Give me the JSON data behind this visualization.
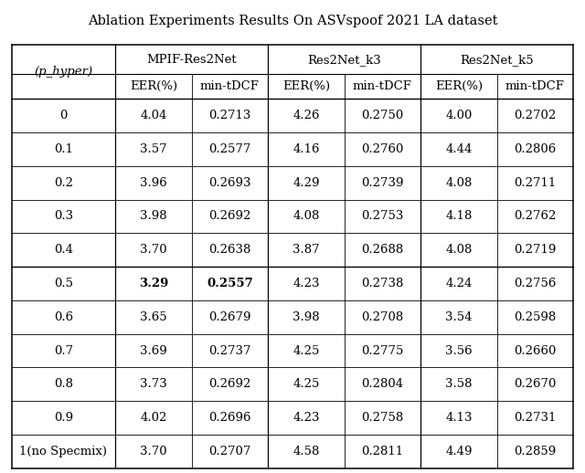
{
  "title": "Ablation Experiments Results On ASVspoof 2021 LA dataset",
  "col_groups": [
    "MPIF-Res2Net",
    "Res2Net_k3",
    "Res2Net_k5"
  ],
  "sub_cols": [
    "EER(%)",
    "min-tDCF"
  ],
  "row_header": "(p_hyper)",
  "rows": [
    {
      "label": "0",
      "vals": [
        "4.04",
        "0.2713",
        "4.26",
        "0.2750",
        "4.00",
        "0.2702"
      ],
      "bold": false
    },
    {
      "label": "0.1",
      "vals": [
        "3.57",
        "0.2577",
        "4.16",
        "0.2760",
        "4.44",
        "0.2806"
      ],
      "bold": false
    },
    {
      "label": "0.2",
      "vals": [
        "3.96",
        "0.2693",
        "4.29",
        "0.2739",
        "4.08",
        "0.2711"
      ],
      "bold": false
    },
    {
      "label": "0.3",
      "vals": [
        "3.98",
        "0.2692",
        "4.08",
        "0.2753",
        "4.18",
        "0.2762"
      ],
      "bold": false
    },
    {
      "label": "0.4",
      "vals": [
        "3.70",
        "0.2638",
        "3.87",
        "0.2688",
        "4.08",
        "0.2719"
      ],
      "bold": false
    },
    {
      "label": "0.5",
      "vals": [
        "3.29",
        "0.2557",
        "4.23",
        "0.2738",
        "4.24",
        "0.2756"
      ],
      "bold": true
    },
    {
      "label": "0.6",
      "vals": [
        "3.65",
        "0.2679",
        "3.98",
        "0.2708",
        "3.54",
        "0.2598"
      ],
      "bold": false
    },
    {
      "label": "0.7",
      "vals": [
        "3.69",
        "0.2737",
        "4.25",
        "0.2775",
        "3.56",
        "0.2660"
      ],
      "bold": false
    },
    {
      "label": "0.8",
      "vals": [
        "3.73",
        "0.2692",
        "4.25",
        "0.2804",
        "3.58",
        "0.2670"
      ],
      "bold": false
    },
    {
      "label": "0.9",
      "vals": [
        "4.02",
        "0.2696",
        "4.23",
        "0.2758",
        "4.13",
        "0.2731"
      ],
      "bold": false
    },
    {
      "label": "1(no Specmix)",
      "vals": [
        "3.70",
        "0.2707",
        "4.58",
        "0.2811",
        "4.49",
        "0.2859"
      ],
      "bold": false
    }
  ],
  "bold_row_idx": 5,
  "bg": "#ffffff",
  "fg": "#000000",
  "title_fontsize": 10.5,
  "header_fontsize": 9.5,
  "cell_fontsize": 9.5
}
